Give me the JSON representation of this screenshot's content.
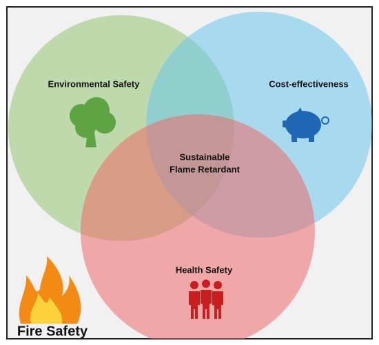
{
  "circles": [
    {
      "label": "Environmental Safety"
    },
    {
      "label": "Cost-effectiveness"
    },
    {
      "label": "Health Safety"
    }
  ],
  "center": {
    "lines": [
      "Sustainable",
      "Flame Retardant"
    ]
  },
  "corner_label": "Fire Safety"
}
